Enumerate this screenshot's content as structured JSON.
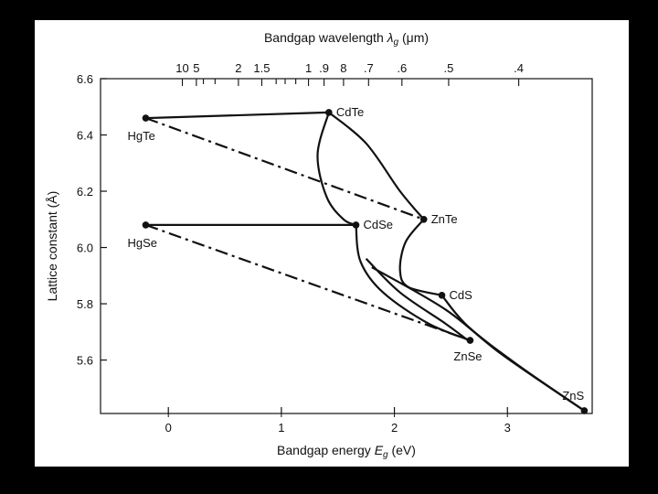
{
  "chart_data": {
    "type": "line",
    "title": "",
    "xlabel_main": "Bandgap energy ",
    "xlabel_symbol": "E",
    "xlabel_sub": "g",
    "xlabel_unit": " (eV)",
    "x2label_main": "Bandgap wavelength ",
    "x2label_symbol": "λ",
    "x2label_sub": "g",
    "x2label_unit": " (μm)",
    "ylabel": "Lattice constant (Å)",
    "xlim": [
      -0.6,
      3.75
    ],
    "ylim": [
      5.41,
      6.6
    ],
    "x_ticks": [
      {
        "value": 0,
        "label": "0"
      },
      {
        "value": 1,
        "label": "1"
      },
      {
        "value": 2,
        "label": "2"
      },
      {
        "value": 3,
        "label": "3"
      }
    ],
    "y_ticks": [
      {
        "value": 5.6,
        "label": "5.6"
      },
      {
        "value": 5.8,
        "label": "5.8"
      },
      {
        "value": 6.0,
        "label": "6.0"
      },
      {
        "value": 6.2,
        "label": "6.2"
      },
      {
        "value": 6.4,
        "label": "6.4"
      },
      {
        "value": 6.6,
        "label": "6.6"
      }
    ],
    "wavelength_ticks": [
      {
        "um": 10,
        "label": "10"
      },
      {
        "um": 5,
        "label": "5"
      },
      {
        "um": 4,
        "label": ""
      },
      {
        "um": 3,
        "label": ""
      },
      {
        "um": 2,
        "label": "2"
      },
      {
        "um": 1.5,
        "label": "1.5"
      },
      {
        "um": 1.3,
        "label": ""
      },
      {
        "um": 1.2,
        "label": ""
      },
      {
        "um": 1.1,
        "label": ""
      },
      {
        "um": 1.0,
        "label": "1"
      },
      {
        "um": 0.9,
        "label": ".9"
      },
      {
        "um": 0.8,
        "label": "8"
      },
      {
        "um": 0.7,
        "label": ".7"
      },
      {
        "um": 0.6,
        "label": ".6"
      },
      {
        "um": 0.5,
        "label": ".5"
      },
      {
        "um": 0.4,
        "label": ".4"
      }
    ],
    "points": [
      {
        "name": "CdTe",
        "x": 1.42,
        "y": 6.48,
        "label_side": "right"
      },
      {
        "name": "HgTe",
        "x": -0.2,
        "y": 6.46,
        "label_side": "below-left"
      },
      {
        "name": "ZnTe",
        "x": 2.26,
        "y": 6.1,
        "label_side": "right"
      },
      {
        "name": "CdSe",
        "x": 1.66,
        "y": 6.08,
        "label_side": "right"
      },
      {
        "name": "HgSe",
        "x": -0.2,
        "y": 6.08,
        "label_side": "below-left"
      },
      {
        "name": "CdS",
        "x": 2.42,
        "y": 5.83,
        "label_side": "right"
      },
      {
        "name": "ZnSe",
        "x": 2.67,
        "y": 5.67,
        "label_side": "below"
      },
      {
        "name": "ZnS",
        "x": 3.68,
        "y": 5.42,
        "label_side": "above-left"
      }
    ],
    "series": [
      {
        "style": "solid",
        "points": [
          [
            -0.2,
            6.46
          ],
          [
            1.42,
            6.48
          ]
        ]
      },
      {
        "style": "solid",
        "points": [
          [
            -0.2,
            6.08
          ],
          [
            1.66,
            6.08
          ]
        ]
      },
      {
        "style": "solid",
        "points": [
          [
            1.42,
            6.48
          ],
          [
            1.32,
            6.33
          ],
          [
            1.4,
            6.18
          ],
          [
            1.55,
            6.1
          ],
          [
            1.66,
            6.08
          ]
        ]
      },
      {
        "style": "solid",
        "points": [
          [
            1.42,
            6.48
          ],
          [
            1.75,
            6.37
          ],
          [
            2.05,
            6.2
          ],
          [
            2.26,
            6.1
          ]
        ]
      },
      {
        "style": "solid",
        "points": [
          [
            2.26,
            6.1
          ],
          [
            2.1,
            6.02
          ],
          [
            2.05,
            5.92
          ],
          [
            2.12,
            5.86
          ],
          [
            2.42,
            5.83
          ]
        ]
      },
      {
        "style": "solid",
        "points": [
          [
            1.66,
            6.08
          ],
          [
            1.7,
            5.95
          ],
          [
            1.9,
            5.84
          ],
          [
            2.3,
            5.73
          ],
          [
            2.67,
            5.67
          ]
        ]
      },
      {
        "style": "solid",
        "points": [
          [
            1.75,
            5.96
          ],
          [
            2.05,
            5.84
          ],
          [
            2.45,
            5.73
          ],
          [
            2.65,
            5.67
          ]
        ]
      },
      {
        "style": "solid",
        "points": [
          [
            1.8,
            5.93
          ],
          [
            2.45,
            5.78
          ],
          [
            2.95,
            5.62
          ],
          [
            3.68,
            5.42
          ]
        ]
      },
      {
        "style": "solid",
        "points": [
          [
            2.42,
            5.83
          ],
          [
            2.65,
            5.72
          ],
          [
            3.1,
            5.58
          ],
          [
            3.68,
            5.42
          ]
        ]
      },
      {
        "style": "dashdot",
        "points": [
          [
            -0.2,
            6.46
          ],
          [
            2.26,
            6.1
          ]
        ]
      },
      {
        "style": "dashdot",
        "points": [
          [
            -0.2,
            6.08
          ],
          [
            2.67,
            5.67
          ]
        ]
      }
    ]
  }
}
